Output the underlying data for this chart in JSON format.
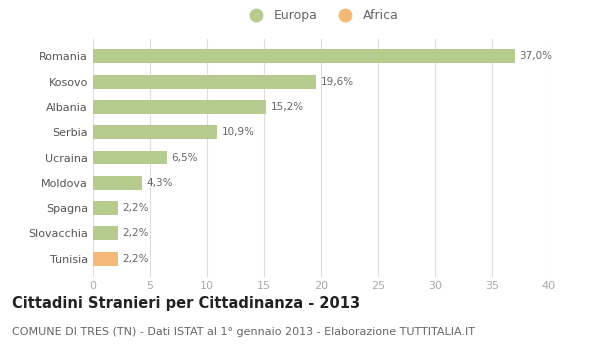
{
  "categories": [
    "Romania",
    "Kosovo",
    "Albania",
    "Serbia",
    "Ucraina",
    "Moldova",
    "Spagna",
    "Slovacchia",
    "Tunisia"
  ],
  "values": [
    37.0,
    19.6,
    15.2,
    10.9,
    6.5,
    4.3,
    2.2,
    2.2,
    2.2
  ],
  "labels": [
    "37,0%",
    "19,6%",
    "15,2%",
    "10,9%",
    "6,5%",
    "4,3%",
    "2,2%",
    "2,2%",
    "2,2%"
  ],
  "colors": [
    "#b5cc8e",
    "#b5cc8e",
    "#b5cc8e",
    "#b5cc8e",
    "#b5cc8e",
    "#b5cc8e",
    "#b5cc8e",
    "#b5cc8e",
    "#f4b976"
  ],
  "legend_europa_color": "#b5cc8e",
  "legend_africa_color": "#f4b976",
  "xlim": [
    0,
    40
  ],
  "xticks": [
    0,
    5,
    10,
    15,
    20,
    25,
    30,
    35,
    40
  ],
  "title": "Cittadini Stranieri per Cittadinanza - 2013",
  "subtitle": "COMUNE DI TRES (TN) - Dati ISTAT al 1° gennaio 2013 - Elaborazione TUTTITALIA.IT",
  "title_fontsize": 10.5,
  "subtitle_fontsize": 8,
  "background_color": "#ffffff",
  "grid_color": "#dddddd",
  "bar_height": 0.55,
  "label_fontsize": 7.5,
  "tick_fontsize": 8,
  "ytick_fontsize": 8
}
